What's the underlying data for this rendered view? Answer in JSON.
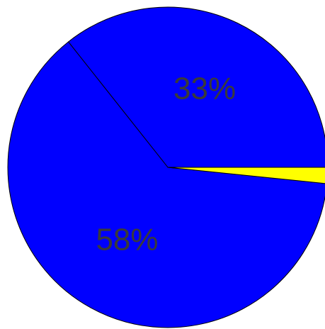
{
  "chart_data": {
    "type": "pie",
    "title": "",
    "slices": [
      {
        "label": "33%",
        "value": 33,
        "color": "#0000ff"
      },
      {
        "label": "58%",
        "value": 58,
        "color": "#0000ff"
      },
      {
        "label": "",
        "value": 1.5,
        "color": "#ffff00"
      }
    ],
    "legend": "none"
  }
}
